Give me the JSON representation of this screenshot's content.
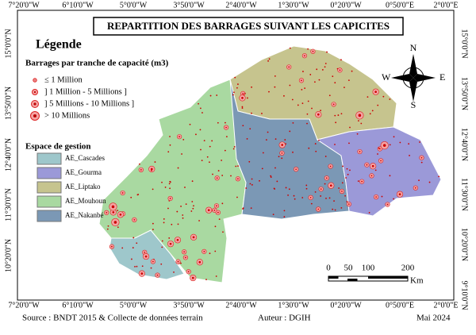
{
  "title": "REPARTITION DES BARRAGES SUIVANT LES CAPICITES",
  "coordinates": {
    "top": [
      "7°20'0\"W",
      "6°10'0\"W",
      "5°0'0\"W",
      "3°50'0\"W",
      "2°40'0\"W",
      "1°30'0\"W",
      "0°20'0\"W",
      "0°50'0\"E",
      "2°0'0\"E"
    ],
    "bottom": [
      "7°20'0\"W",
      "6°10'0\"W",
      "5°0'0\"W",
      "3°50'0\"W",
      "2°40'0\"W",
      "1°30'0\"W",
      "0°20'0\"W",
      "0°50'0\"E",
      "2°0'0\"E"
    ],
    "left": [
      "15°0'0\"N",
      "13°50'0\"N",
      "12°40'0\"N",
      "11°30'0\"N",
      "10°20'0\"N"
    ],
    "right": [
      "15°0'0\"N",
      "13°50'0\"N",
      "12°40'0\"N",
      "11°30'0\"N",
      "10°20'0\"N",
      "9°10'0\"N"
    ]
  },
  "legend": {
    "title": "Légende",
    "capacity_title": "Barrages par tranche de capacité (m3)",
    "capacity_classes": [
      "≤ 1 Million",
      "] 1 Million - 5 Millions ]",
      "] 5 Millions - 10 Millions ]",
      "> 10 Millions"
    ],
    "zone_title": "Espace de gestion",
    "zones": [
      {
        "name": "AE_Cascades",
        "color": "#9ec7cb"
      },
      {
        "name": "AE_Gourma",
        "color": "#9b99d8"
      },
      {
        "name": "AE_Liptako",
        "color": "#c6c48e"
      },
      {
        "name": "AE_Mouhoun",
        "color": "#a9d9a1"
      },
      {
        "name": "AE_Nakanbé",
        "color": "#7b98b5"
      }
    ]
  },
  "scale": {
    "labels": [
      "0",
      "50",
      "100",
      "200"
    ],
    "unit": "Km"
  },
  "compass": {
    "n": "N",
    "s": "S",
    "e": "E",
    "w": "W"
  },
  "footer": {
    "source": "Source : BNDT 2015 & Collecte de données terrain",
    "author": "Auteur : DGIH",
    "date": "Mai 2024"
  }
}
